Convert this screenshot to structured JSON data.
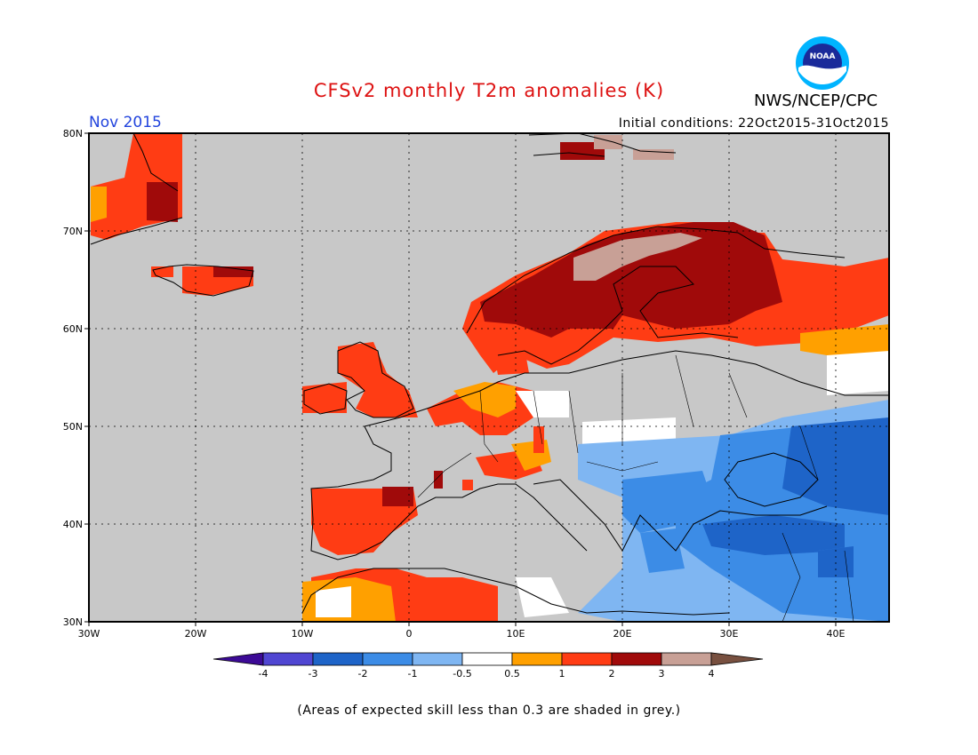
{
  "header": {
    "title": "CFSv2 monthly T2m anomalies (K)",
    "month": "Nov 2015",
    "initial_conditions": "Initial conditions: 22Oct2015-31Oct2015",
    "agency": "NWS/NCEP/CPC",
    "logo_text": "NOAA"
  },
  "map": {
    "lat_ticks": [
      "80N",
      "70N",
      "60N",
      "50N",
      "40N",
      "30N"
    ],
    "lon_ticks": [
      "30W",
      "20W",
      "10W",
      "0",
      "10E",
      "20E",
      "30E",
      "40E"
    ],
    "colors": {
      "background": "#c8c8c8",
      "anomaly_0_5_1": "#ffa000",
      "anomaly_1_2": "#ff3c14",
      "anomaly_2_3": "#a00a0a",
      "anomaly_3_4": "#c8a096",
      "anomaly_neg_1_neg_0_5": "#7fb6f2",
      "anomaly_neg_2_neg_1": "#3c8ce6",
      "anomaly_neg_3_neg_2": "#1e64c8",
      "neutral": "#ffffff"
    }
  },
  "colorbar": {
    "labels": [
      "-4",
      "-3",
      "-2",
      "-1",
      "-0.5",
      "0.5",
      "1",
      "2",
      "3",
      "4"
    ],
    "colors": [
      "#3c0a96",
      "#5046d2",
      "#1e64c8",
      "#3c8ce6",
      "#7fb6f2",
      "#ffffff",
      "#ffa000",
      "#ff3c14",
      "#a00a0a",
      "#c8a096",
      "#785040"
    ]
  },
  "footnote": "(Areas of expected skill less than 0.3 are shaded in grey.)"
}
